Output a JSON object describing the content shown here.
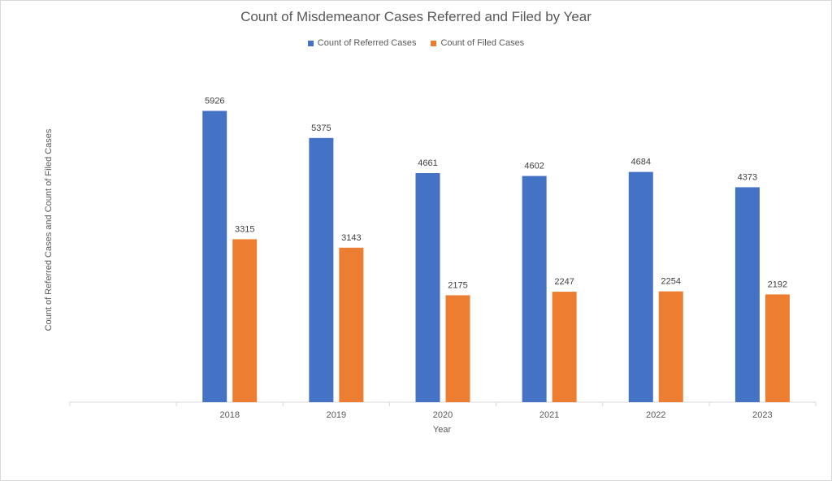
{
  "chart_data": {
    "type": "bar",
    "title": "Count of Misdemeanor Cases Referred and Filed by Year",
    "xlabel": "Year",
    "ylabel": "Count of Referred Cases and Count of Filed Cases",
    "categories": [
      "",
      "2018",
      "2019",
      "2020",
      "2021",
      "2022",
      "2023"
    ],
    "series": [
      {
        "name": "Count of Referred Cases",
        "color": "#4472c4",
        "values": [
          null,
          5926,
          5375,
          4661,
          4602,
          4684,
          4373
        ]
      },
      {
        "name": "Count of Filed Cases",
        "color": "#ed7d31",
        "values": [
          null,
          3315,
          3143,
          2175,
          2247,
          2254,
          2192
        ]
      }
    ],
    "ylim": [
      0,
      6500
    ],
    "grid": false,
    "legend_position": "top",
    "data_labels": true
  }
}
